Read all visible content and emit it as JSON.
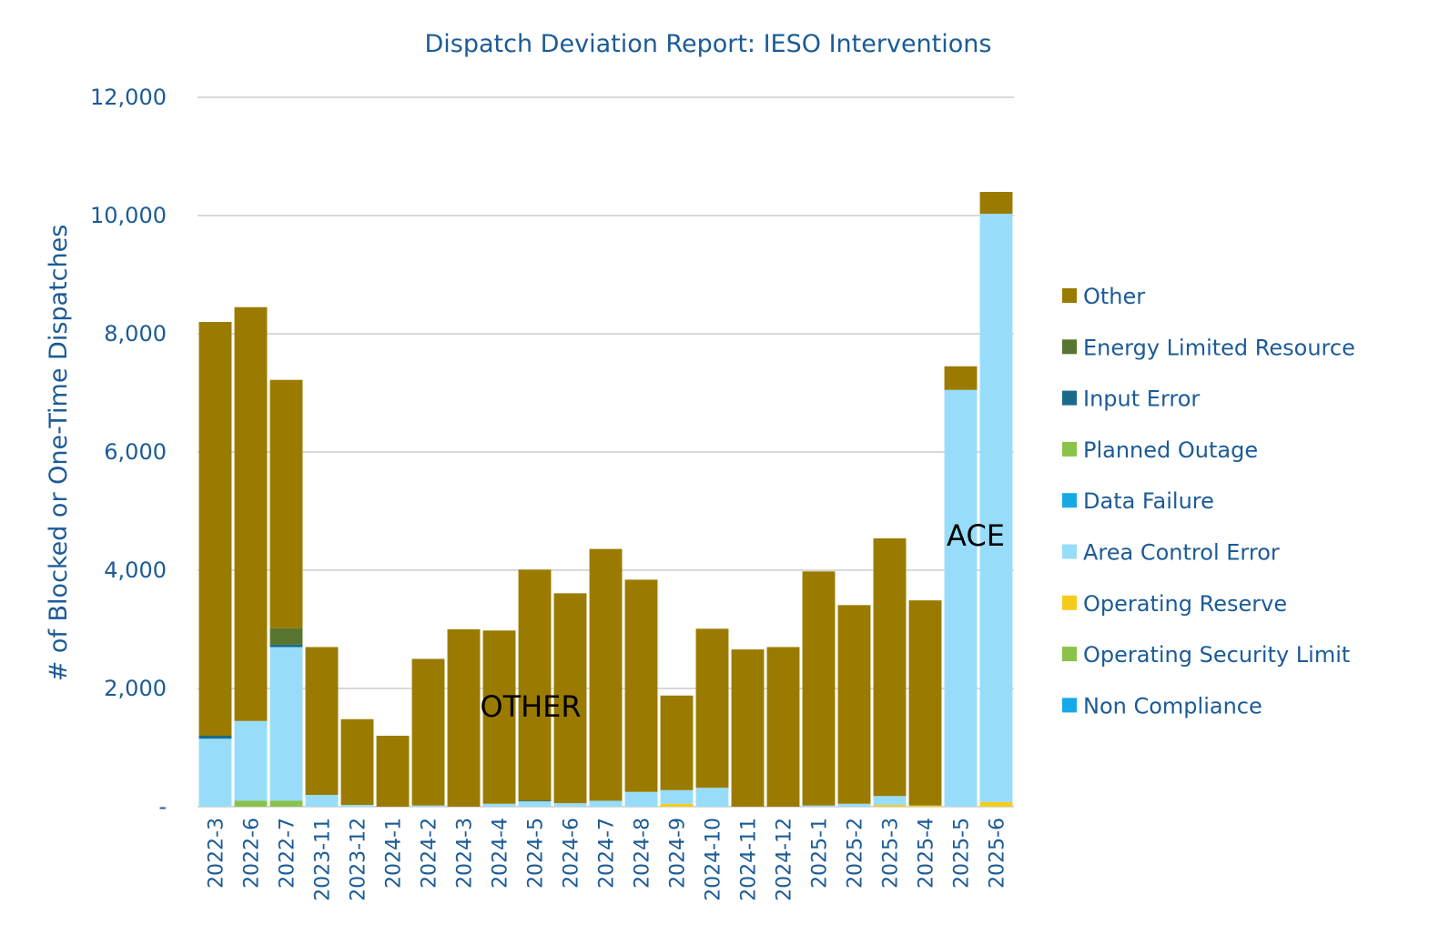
{
  "chart_data": {
    "type": "bar",
    "stacked": true,
    "title": "Dispatch Deviation Report: IESO Interventions",
    "ylabel": "# of Blocked or One-Time Dispatches",
    "xlabel": "",
    "ylim": [
      0,
      12000
    ],
    "yticks": [
      {
        "value": 0,
        "label": "-"
      },
      {
        "value": 2000,
        "label": "2,000"
      },
      {
        "value": 4000,
        "label": "4,000"
      },
      {
        "value": 6000,
        "label": "6,000"
      },
      {
        "value": 8000,
        "label": "8,000"
      },
      {
        "value": 10000,
        "label": "10,000"
      },
      {
        "value": 12000,
        "label": "12,000"
      }
    ],
    "grid": true,
    "legend_position": "right",
    "categories": [
      "2022-3",
      "2022-6",
      "2022-7",
      "2023-11",
      "2023-12",
      "2024-1",
      "2024-2",
      "2024-3",
      "2024-4",
      "2024-5",
      "2024-6",
      "2024-7",
      "2024-8",
      "2024-9",
      "2024-10",
      "2024-11",
      "2024-12",
      "2025-1",
      "2025-2",
      "2025-3",
      "2025-4",
      "2025-5",
      "2025-6"
    ],
    "series": [
      {
        "name": "Non Compliance",
        "color": "#17a9e6",
        "values": [
          0,
          0,
          0,
          0,
          0,
          0,
          0,
          0,
          0,
          0,
          0,
          0,
          0,
          0,
          0,
          0,
          0,
          0,
          0,
          0,
          0,
          0,
          0
        ]
      },
      {
        "name": "Operating Security Limit",
        "color": "#8bc34a",
        "values": [
          0,
          100,
          100,
          0,
          0,
          0,
          0,
          0,
          0,
          0,
          0,
          0,
          0,
          0,
          0,
          0,
          0,
          0,
          0,
          0,
          0,
          0,
          0
        ]
      },
      {
        "name": "Operating Reserve",
        "color": "#f5cc1c",
        "values": [
          0,
          0,
          0,
          0,
          0,
          0,
          0,
          0,
          0,
          0,
          0,
          0,
          0,
          50,
          0,
          0,
          0,
          0,
          0,
          30,
          20,
          0,
          80
        ]
      },
      {
        "name": "Area Control Error",
        "color": "#97ddfa",
        "values": [
          1150,
          1350,
          2600,
          200,
          30,
          0,
          20,
          0,
          50,
          90,
          60,
          100,
          250,
          230,
          320,
          0,
          0,
          20,
          50,
          150,
          0,
          7050,
          9950
        ]
      },
      {
        "name": "Data Failure",
        "color": "#17a9e6",
        "values": [
          0,
          0,
          0,
          0,
          0,
          0,
          0,
          0,
          0,
          0,
          0,
          0,
          0,
          0,
          0,
          0,
          0,
          0,
          0,
          0,
          0,
          0,
          0
        ]
      },
      {
        "name": "Planned Outage",
        "color": "#8bc34a",
        "values": [
          0,
          0,
          0,
          0,
          0,
          0,
          0,
          0,
          0,
          0,
          0,
          0,
          0,
          0,
          0,
          0,
          0,
          0,
          0,
          0,
          0,
          0,
          0
        ]
      },
      {
        "name": "Input Error",
        "color": "#1a6a8c",
        "values": [
          50,
          0,
          40,
          0,
          0,
          0,
          0,
          0,
          0,
          10,
          0,
          0,
          0,
          0,
          0,
          0,
          0,
          0,
          0,
          0,
          0,
          0,
          0
        ]
      },
      {
        "name": "Energy Limited Resource",
        "color": "#587530",
        "values": [
          0,
          0,
          280,
          0,
          0,
          0,
          0,
          0,
          0,
          0,
          0,
          0,
          0,
          0,
          0,
          0,
          0,
          0,
          0,
          0,
          0,
          0,
          0
        ]
      },
      {
        "name": "Other",
        "color": "#9a7b00",
        "values": [
          7000,
          7000,
          4200,
          2500,
          1450,
          1200,
          2480,
          3000,
          2930,
          3910,
          3550,
          4260,
          3590,
          1600,
          2690,
          2660,
          2700,
          3960,
          3360,
          4360,
          3470,
          400,
          370
        ]
      }
    ],
    "legend_order": [
      "Other",
      "Energy Limited Resource",
      "Input Error",
      "Planned Outage",
      "Data Failure",
      "Area Control Error",
      "Operating Reserve",
      "Operating Security Limit",
      "Non Compliance"
    ],
    "annotations": [
      "OTHER",
      "ACE"
    ]
  }
}
